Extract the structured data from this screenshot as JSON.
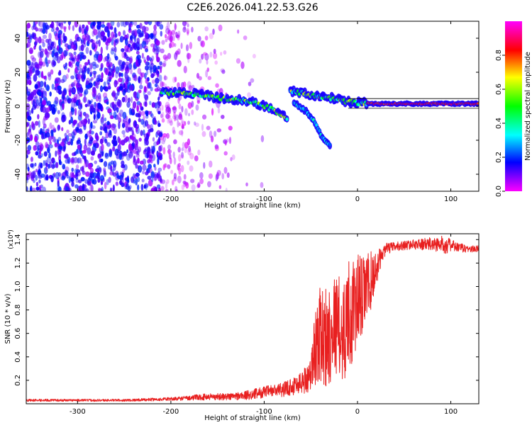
{
  "figure": {
    "title": "C2E6.2026.041.22.53.G26"
  },
  "chart_data": [
    {
      "type": "heatmap",
      "title": "C2E6.2026.041.22.53.G26",
      "xlabel": "Height of straight line (km)",
      "ylabel": "Frequency (Hz)",
      "xlim": [
        -355,
        130
      ],
      "ylim": [
        -50,
        50
      ],
      "xticks": [
        -300,
        -200,
        -100,
        0,
        100
      ],
      "yticks": [
        -40,
        -20,
        0,
        20,
        40
      ],
      "grid": false,
      "colorbar": {
        "label": "Normalized spectral amplitude",
        "range": [
          0,
          1
        ],
        "ticks": [
          0.0,
          0.2,
          0.4,
          0.6,
          0.8
        ],
        "colormap": [
          "#ff00ff",
          "#0000ff",
          "#00ffff",
          "#00ff00",
          "#ffff00",
          "#ff0000",
          "#ff00ff"
        ]
      },
      "ridge": {
        "segments": [
          {
            "x": [
              -210,
              -190,
              -170,
              -150,
              -130,
              -110,
              -90,
              -75
            ],
            "y": [
              8,
              8,
              7,
              5,
              4,
              2,
              -2,
              -7
            ]
          },
          {
            "x": [
              -72,
              -60,
              -45,
              -30,
              -15,
              0,
              20,
              60,
              100,
              130
            ],
            "y": [
              9,
              8,
              6,
              5,
              3,
              2,
              1.5,
              1.5,
              1.5,
              1.5
            ]
          },
          {
            "x": [
              -68,
              -55,
              -45,
              -38,
              -28
            ],
            "y": [
              2,
              -3,
              -10,
              -18,
              -24
            ]
          }
        ]
      }
    },
    {
      "type": "line",
      "xlabel": "Height of straight line (km)",
      "ylabel": "SNR (10 * v/v)",
      "y_multiplier": "(x10⁴)",
      "xlim": [
        -355,
        130
      ],
      "ylim": [
        0,
        1.45
      ],
      "xticks": [
        -300,
        -200,
        -100,
        0,
        100
      ],
      "yticks": [
        0.2,
        0.4,
        0.6,
        0.8,
        1.0,
        1.2,
        1.4
      ],
      "grid": false,
      "series": [
        {
          "color": "#e82020",
          "x": [
            -355,
            -300,
            -250,
            -200,
            -180,
            -160,
            -140,
            -120,
            -100,
            -80,
            -70,
            -60,
            -50,
            -45,
            -40,
            -35,
            -30,
            -25,
            -20,
            -15,
            -10,
            -5,
            0,
            5,
            10,
            15,
            20,
            25,
            30,
            40,
            50,
            60,
            70,
            80,
            90,
            95,
            100,
            110,
            120,
            130
          ],
          "y": [
            0.03,
            0.03,
            0.03,
            0.04,
            0.05,
            0.06,
            0.06,
            0.07,
            0.1,
            0.12,
            0.15,
            0.18,
            0.25,
            0.5,
            0.6,
            0.55,
            0.6,
            0.7,
            0.65,
            0.6,
            0.8,
            0.75,
            0.9,
            0.9,
            1.0,
            1.05,
            1.15,
            1.25,
            1.32,
            1.34,
            1.35,
            1.36,
            1.36,
            1.36,
            1.36,
            1.36,
            1.35,
            1.33,
            1.32,
            1.32
          ],
          "noise_amplitude": [
            0.01,
            0.01,
            0.01,
            0.015,
            0.02,
            0.03,
            0.03,
            0.04,
            0.05,
            0.06,
            0.08,
            0.1,
            0.15,
            0.35,
            0.4,
            0.45,
            0.45,
            0.4,
            0.45,
            0.45,
            0.45,
            0.45,
            0.4,
            0.35,
            0.3,
            0.25,
            0.15,
            0.08,
            0.05,
            0.04,
            0.04,
            0.04,
            0.05,
            0.06,
            0.07,
            0.08,
            0.05,
            0.04,
            0.03,
            0.03
          ]
        }
      ]
    }
  ]
}
